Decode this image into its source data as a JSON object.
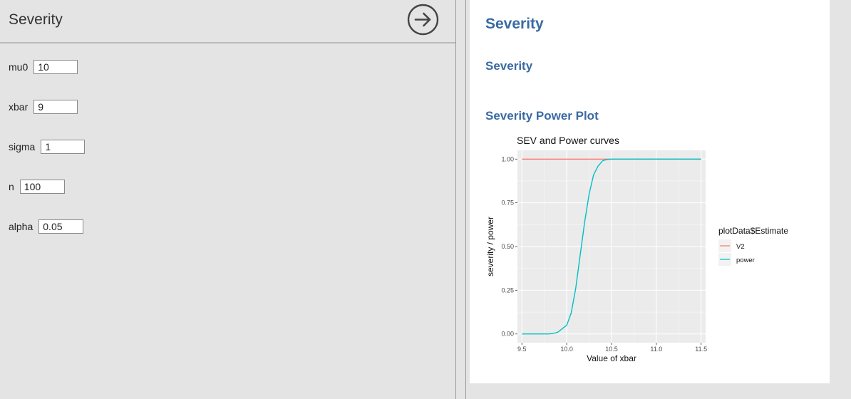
{
  "left": {
    "title": "Severity",
    "fields": [
      {
        "label": "mu0",
        "value": "10"
      },
      {
        "label": "xbar",
        "value": "9"
      },
      {
        "label": "sigma",
        "value": "1"
      },
      {
        "label": "n",
        "value": "100"
      },
      {
        "label": "alpha",
        "value": "0.05"
      }
    ]
  },
  "right": {
    "title": "Severity",
    "subtitle1": "Severity",
    "subtitle2": "Severity Power Plot"
  },
  "chart_data": {
    "type": "line",
    "title": "SEV and Power curves",
    "xlabel": "Value of xbar",
    "ylabel": "severity / power",
    "xlim": [
      9.45,
      11.55
    ],
    "ylim": [
      -0.05,
      1.05
    ],
    "xticks": [
      "9.5",
      "10.0",
      "10.5",
      "11.0",
      "11.5"
    ],
    "yticks": [
      "0.00",
      "0.25",
      "0.50",
      "0.75",
      "1.00"
    ],
    "grid": true,
    "legend": {
      "title": "plotData$Estimate",
      "position": "right"
    },
    "series": [
      {
        "name": "V2",
        "color": "#f8766d",
        "x": [
          9.5,
          11.5
        ],
        "y": [
          1.0,
          1.0
        ]
      },
      {
        "name": "power",
        "color": "#00bfc4",
        "x": [
          9.5,
          9.6,
          9.7,
          9.75,
          9.8,
          9.85,
          9.9,
          9.95,
          10.0,
          10.05,
          10.1,
          10.15,
          10.2,
          10.25,
          10.3,
          10.35,
          10.4,
          10.45,
          10.5,
          10.6,
          10.7,
          10.8,
          11.0,
          11.5
        ],
        "y": [
          0.0,
          0.0,
          0.0,
          0.0,
          0.0,
          0.003,
          0.01,
          0.03,
          0.05,
          0.12,
          0.26,
          0.45,
          0.64,
          0.8,
          0.91,
          0.96,
          0.99,
          0.998,
          1.0,
          1.0,
          1.0,
          1.0,
          1.0,
          1.0
        ]
      }
    ]
  }
}
